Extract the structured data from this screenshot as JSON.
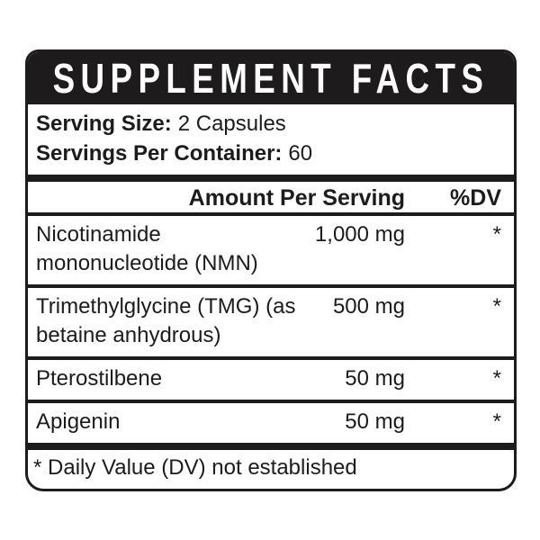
{
  "title": "SUPPLEMENT FACTS",
  "serving_info": {
    "serving_size_label": "Serving Size:",
    "serving_size_value": "2 Capsules",
    "servings_per_container_label": "Servings Per Container:",
    "servings_per_container_value": "60"
  },
  "table": {
    "header": {
      "amount": "Amount Per Serving",
      "dv": "%DV"
    },
    "rows": [
      {
        "name": "Nicotinamide mononucleotide (NMN)",
        "amount": "1,000 mg",
        "dv": "*"
      },
      {
        "name": "Trimethylglycine (TMG) (as betaine anhydrous)",
        "amount": "500 mg",
        "dv": "*"
      },
      {
        "name": "Pterostilbene",
        "amount": "50 mg",
        "dv": "*"
      },
      {
        "name": "Apigenin",
        "amount": "50 mg",
        "dv": "*"
      }
    ]
  },
  "footnote": "* Daily Value (DV) not established",
  "colors": {
    "ink": "#1d1b1c",
    "background": "#ffffff"
  }
}
